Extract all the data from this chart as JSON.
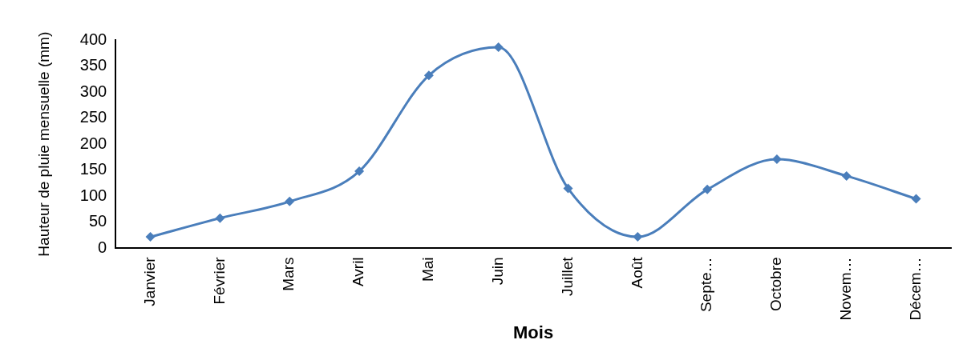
{
  "chart_data": {
    "type": "line",
    "xlabel": "Mois",
    "ylabel": "Hauteur de pluie mensuelle (mm)",
    "categories": [
      "Janvier",
      "Février",
      "Mars",
      "Avril",
      "Mai",
      "Juin",
      "Juillet",
      "Août",
      "Septe…",
      "Octobre",
      "Novem…",
      "Décem…"
    ],
    "series": [
      {
        "color": "#4a7ebb",
        "values": [
          22,
          58,
          90,
          148,
          332,
          386,
          115,
          22,
          113,
          171,
          139,
          95
        ]
      }
    ],
    "ylim": [
      0,
      400
    ],
    "yticks": [
      0,
      50,
      100,
      150,
      200,
      250,
      300,
      350,
      400
    ],
    "grid": false,
    "legend": false,
    "marker": "diamond",
    "line_style": "solid"
  }
}
